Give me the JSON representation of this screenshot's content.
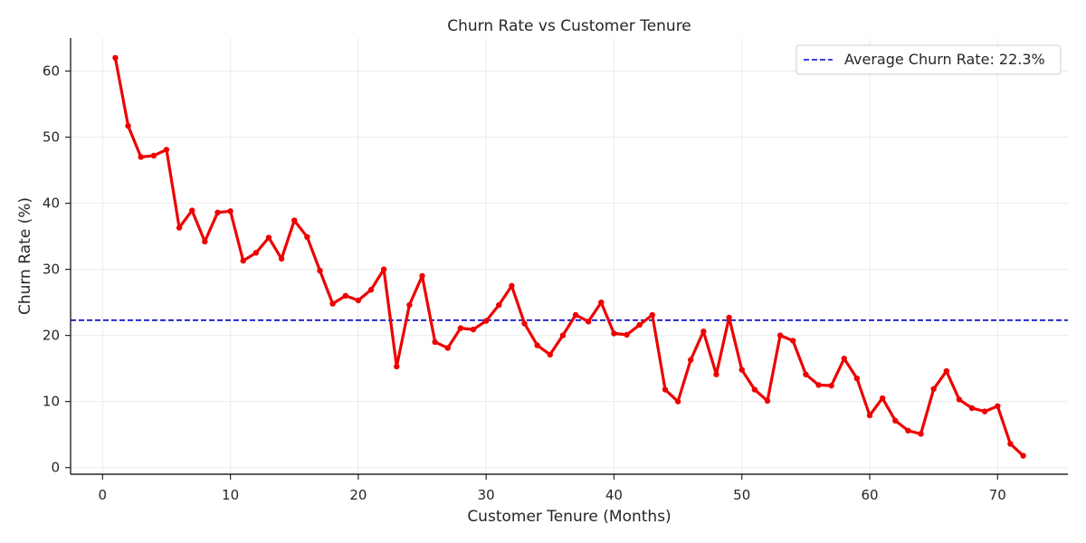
{
  "chart_data": {
    "type": "line",
    "title": "Churn Rate vs Customer Tenure",
    "xlabel": "Customer Tenure (Months)",
    "ylabel": "Churn Rate (%)",
    "xlim": [
      -2.5,
      75.5
    ],
    "ylim": [
      -1,
      65
    ],
    "xticks": [
      0,
      10,
      20,
      30,
      40,
      50,
      60,
      70
    ],
    "yticks": [
      0,
      10,
      20,
      30,
      40,
      50,
      60
    ],
    "grid": true,
    "legend": "top-right",
    "series": [
      {
        "color": "#ee0000",
        "x": [
          1,
          2,
          3,
          4,
          5,
          6,
          7,
          8,
          9,
          10,
          11,
          12,
          13,
          14,
          15,
          16,
          17,
          18,
          19,
          20,
          21,
          22,
          23,
          24,
          25,
          26,
          27,
          28,
          29,
          30,
          31,
          32,
          33,
          34,
          35,
          36,
          37,
          38,
          39,
          40,
          41,
          42,
          43,
          44,
          45,
          46,
          47,
          48,
          49,
          50,
          51,
          52,
          53,
          54,
          55,
          56,
          57,
          58,
          59,
          60,
          61,
          62,
          63,
          64,
          65,
          66,
          67,
          68,
          69,
          70,
          71,
          72
        ],
        "y": [
          62.0,
          51.7,
          47.0,
          47.2,
          48.1,
          36.3,
          38.9,
          34.2,
          38.6,
          38.8,
          31.3,
          32.5,
          34.8,
          31.6,
          37.4,
          34.9,
          29.8,
          24.8,
          26.0,
          25.3,
          26.9,
          30.0,
          15.3,
          24.6,
          29.0,
          19.0,
          18.1,
          21.1,
          20.9,
          22.2,
          24.6,
          27.5,
          21.8,
          18.5,
          17.1,
          20.0,
          23.1,
          22.1,
          25.0,
          20.3,
          20.1,
          21.6,
          23.1,
          11.8,
          10.0,
          16.3,
          20.6,
          14.1,
          22.7,
          14.8,
          11.8,
          10.1,
          20.0,
          19.2,
          14.1,
          12.5,
          12.4,
          16.5,
          13.5,
          7.9,
          10.5,
          7.1,
          5.6,
          5.1,
          11.9,
          14.6,
          10.3,
          9.0,
          8.5,
          9.3,
          3.6,
          1.8
        ]
      }
    ],
    "reference_line": {
      "label": "Average Churn Rate: 22.3%",
      "value": 22.3,
      "color": "#0000cc"
    }
  }
}
